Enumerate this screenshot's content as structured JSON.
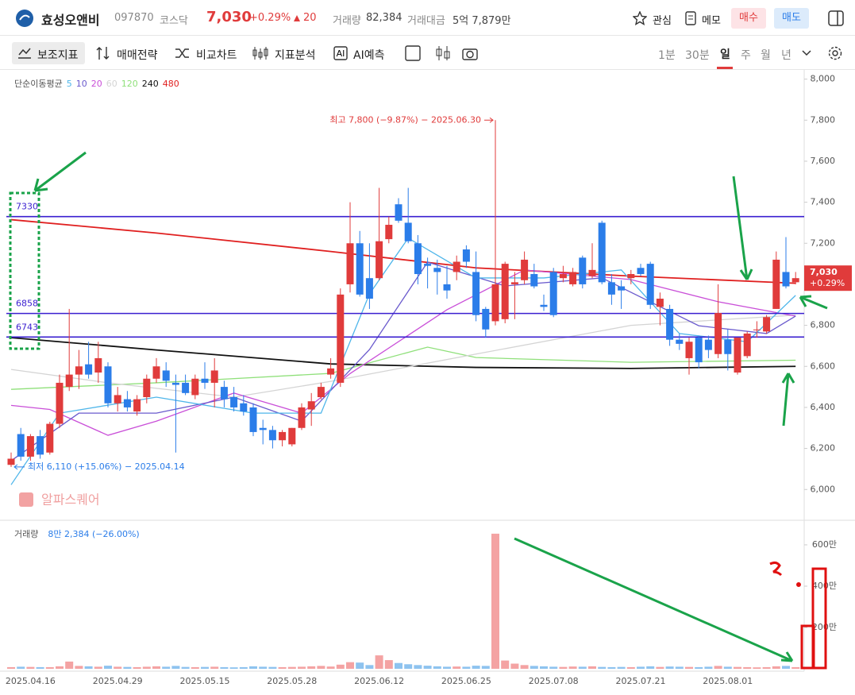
{
  "header": {
    "name": "효성오앤비",
    "code": "097870",
    "market": "코스닥",
    "price": "7,030",
    "change_pct": "+0.29%",
    "change": "20",
    "volume_label": "거래량",
    "volume": "82,384",
    "amount_label": "거래대금",
    "amount": "5억 7,879만",
    "buttons": [
      "관심",
      "메모",
      "매수",
      "매도"
    ]
  },
  "toolbar": {
    "items": [
      "보조지표",
      "매매전략",
      "비교차트",
      "지표분석",
      "AI예측"
    ],
    "periods": [
      "1분",
      "30분",
      "일",
      "주",
      "월",
      "년"
    ]
  },
  "chart_data": {
    "type": "candlestick",
    "up_color": "#e03b3b",
    "down_color": "#2b7de9",
    "categories": [
      null,
      null,
      "2025.04.16",
      null,
      null,
      null,
      null,
      null,
      null,
      null,
      null,
      "2025.04.29",
      null,
      null,
      null,
      null,
      null,
      null,
      null,
      null,
      "2025.05.15",
      null,
      null,
      null,
      null,
      null,
      null,
      null,
      null,
      "2025.05.28",
      null,
      null,
      null,
      null,
      null,
      null,
      null,
      null,
      "2025.06.12",
      null,
      null,
      null,
      null,
      null,
      null,
      null,
      null,
      "2025.06.25",
      null,
      null,
      null,
      null,
      null,
      null,
      null,
      null,
      "2025.07.08",
      null,
      null,
      null,
      null,
      null,
      null,
      null,
      null,
      "2025.07.21",
      null,
      null,
      null,
      null,
      null,
      null,
      null,
      null,
      "2025.08.01",
      null,
      null,
      null,
      null,
      null,
      null,
      null
    ],
    "candles": [
      [
        6120,
        6180,
        6110,
        6150
      ],
      [
        6270,
        6300,
        6140,
        6160
      ],
      [
        6160,
        6270,
        6140,
        6260
      ],
      [
        6260,
        6290,
        6150,
        6170
      ],
      [
        6180,
        6330,
        6170,
        6320
      ],
      [
        6320,
        6560,
        6300,
        6520
      ],
      [
        6500,
        6880,
        6480,
        6560
      ],
      [
        6560,
        6680,
        6490,
        6600
      ],
      [
        6610,
        6720,
        6540,
        6560
      ],
      [
        6570,
        6720,
        6520,
        6640
      ],
      [
        6600,
        6620,
        6400,
        6420
      ],
      [
        6420,
        6500,
        6380,
        6460
      ],
      [
        6440,
        6480,
        6380,
        6400
      ],
      [
        6380,
        6460,
        6360,
        6440
      ],
      [
        6450,
        6560,
        6420,
        6540
      ],
      [
        6540,
        6640,
        6520,
        6600
      ],
      [
        6580,
        6620,
        6500,
        6530
      ],
      [
        6520,
        6560,
        6180,
        6510
      ],
      [
        6520,
        6560,
        6460,
        6470
      ],
      [
        6460,
        6560,
        6440,
        6540
      ],
      [
        6540,
        6620,
        6490,
        6520
      ],
      [
        6520,
        6640,
        6400,
        6580
      ],
      [
        6500,
        6530,
        6400,
        6440
      ],
      [
        6450,
        6500,
        6380,
        6400
      ],
      [
        6420,
        6460,
        6360,
        6380
      ],
      [
        6400,
        6420,
        6260,
        6280
      ],
      [
        6300,
        6340,
        6220,
        6290
      ],
      [
        6290,
        6310,
        6200,
        6240
      ],
      [
        6240,
        6290,
        6210,
        6280
      ],
      [
        6220,
        6300,
        6210,
        6300
      ],
      [
        6300,
        6420,
        6290,
        6400
      ],
      [
        6390,
        6470,
        6310,
        6430
      ],
      [
        6450,
        6520,
        6440,
        6500
      ],
      [
        6560,
        6640,
        6540,
        6590
      ],
      [
        6520,
        6980,
        6500,
        6950
      ],
      [
        7000,
        7400,
        6960,
        7200
      ],
      [
        7200,
        7260,
        6940,
        6950
      ],
      [
        7030,
        7200,
        6880,
        6930
      ],
      [
        7030,
        7470,
        7020,
        7210
      ],
      [
        7220,
        7330,
        7200,
        7290
      ],
      [
        7390,
        7420,
        7300,
        7310
      ],
      [
        7300,
        7470,
        7200,
        7210
      ],
      [
        7200,
        7240,
        7000,
        7050
      ],
      [
        7100,
        7130,
        6980,
        7090
      ],
      [
        7080,
        7120,
        6950,
        7060
      ],
      [
        7000,
        7090,
        6930,
        6970
      ],
      [
        7060,
        7140,
        7020,
        7110
      ],
      [
        7170,
        7190,
        7080,
        7110
      ],
      [
        7060,
        7160,
        6820,
        6850
      ],
      [
        6880,
        6890,
        6740,
        6780
      ],
      [
        6820,
        7800,
        6800,
        7000
      ],
      [
        6830,
        7110,
        6810,
        7100
      ],
      [
        7000,
        7060,
        6830,
        7010
      ],
      [
        7020,
        7160,
        7000,
        7120
      ],
      [
        7050,
        7100,
        6980,
        6990
      ],
      [
        6900,
        6950,
        6870,
        6890
      ],
      [
        7060,
        7080,
        6840,
        6850
      ],
      [
        7030,
        7090,
        7010,
        7050
      ],
      [
        7000,
        7080,
        6990,
        7060
      ],
      [
        7130,
        7140,
        6980,
        7000
      ],
      [
        7040,
        7200,
        7030,
        7070
      ],
      [
        7300,
        7310,
        7000,
        7010
      ],
      [
        7010,
        7050,
        6900,
        6950
      ],
      [
        6990,
        7020,
        6880,
        6970
      ],
      [
        7030,
        7070,
        7000,
        7050
      ],
      [
        7080,
        7100,
        7040,
        7050
      ],
      [
        7100,
        7110,
        6880,
        6900
      ],
      [
        6890,
        6960,
        6800,
        6930
      ],
      [
        6880,
        6900,
        6700,
        6730
      ],
      [
        6730,
        6760,
        6680,
        6710
      ],
      [
        6640,
        6740,
        6560,
        6720
      ],
      [
        6740,
        6750,
        6590,
        6620
      ],
      [
        6730,
        6750,
        6640,
        6680
      ],
      [
        6660,
        7000,
        6640,
        6860
      ],
      [
        6730,
        6780,
        6580,
        6660
      ],
      [
        6570,
        6740,
        6560,
        6740
      ],
      [
        6650,
        6770,
        6640,
        6760
      ],
      [
        6780,
        6820,
        6740,
        6780
      ],
      [
        6770,
        6850,
        6760,
        6840
      ],
      [
        6880,
        7160,
        6880,
        7120
      ],
      [
        7060,
        7230,
        6980,
        6990
      ],
      [
        7010,
        7060,
        7000,
        7030
      ]
    ],
    "ylim": [
      5850,
      8045
    ],
    "yticks": [
      {
        "value": 6000,
        "label": "6,000"
      },
      {
        "value": 6200,
        "label": "6,200"
      },
      {
        "value": 6400,
        "label": "6,400"
      },
      {
        "value": 6600,
        "label": "6,600"
      },
      {
        "value": 6800,
        "label": "6,800"
      },
      {
        "value": 7000,
        "label": "7,000"
      },
      {
        "value": 7200,
        "label": "7,200"
      },
      {
        "value": 7400,
        "label": "7,400"
      },
      {
        "value": 7600,
        "label": "7,600"
      },
      {
        "value": 7800,
        "label": "7,800"
      },
      {
        "value": 8000,
        "label": "8,000"
      }
    ],
    "ma_label": "단순이동평균",
    "moving_averages": [
      {
        "name": "5",
        "color": "#4fb6ea",
        "x": [
          0,
          5,
          15,
          25,
          32,
          37,
          41,
          48,
          55,
          63,
          69,
          76,
          81
        ],
        "values": [
          6023,
          6372,
          6450,
          6372,
          6372,
          6953,
          7225,
          7031,
          7031,
          7070,
          6760,
          6720,
          6946
        ]
      },
      {
        "name": "10",
        "color": "#6a5acd",
        "x": [
          0,
          7,
          15,
          23,
          30,
          37,
          43,
          51,
          61,
          71,
          78,
          81
        ],
        "values": [
          6140,
          6372,
          6372,
          6450,
          6333,
          6682,
          7108,
          6992,
          7031,
          6798,
          6760,
          6845
        ]
      },
      {
        "name": "20",
        "color": "#c94fd8",
        "x": [
          0,
          4,
          10,
          15,
          23,
          30,
          35,
          45,
          53,
          64,
          73,
          81
        ],
        "values": [
          6410,
          6390,
          6264,
          6333,
          6470,
          6372,
          6565,
          6876,
          7070,
          7023,
          6915,
          6845
        ]
      },
      {
        "name": "60",
        "color": "#d4d4d4",
        "x": [
          0,
          10,
          23,
          33,
          48,
          64,
          81
        ],
        "values": [
          6585,
          6520,
          6450,
          6527,
          6660,
          6800,
          6850
        ]
      },
      {
        "name": "120",
        "color": "#8fe07a",
        "x": [
          0,
          15,
          33,
          43,
          48,
          64,
          81
        ],
        "values": [
          6488,
          6520,
          6566,
          6694,
          6643,
          6620,
          6630
        ]
      },
      {
        "name": "240",
        "color": "#111111",
        "x": [
          0,
          15,
          33,
          48,
          64,
          81
        ],
        "values": [
          6740,
          6680,
          6612,
          6595,
          6590,
          6600
        ]
      },
      {
        "name": "480",
        "color": "#e02020",
        "x": [
          0,
          15,
          33,
          48,
          64,
          81
        ],
        "values": [
          7315,
          7250,
          7160,
          7080,
          7040,
          7005
        ]
      }
    ],
    "levels": [
      7330,
      6858,
      6743
    ],
    "level_color": "#3a1fd0",
    "high_label": "최고 7,800 (−9.87%) − 2025.06.30",
    "low_label": "최저 6,110 (+15.06%) − 2025.04.14",
    "price_tag": "7,030",
    "change_tag": "+0.29%",
    "watermark": "알파스퀘어",
    "volume": {
      "label": "거래량",
      "legend": "8만 2,384 (−26.00%)",
      "up_color": "#f4a3a3",
      "down_color": "#8ec3ef",
      "values": [
        8,
        10,
        9,
        8,
        8,
        12,
        35,
        14,
        12,
        10,
        15,
        10,
        9,
        8,
        10,
        12,
        10,
        14,
        9,
        8,
        9,
        10,
        8,
        7,
        8,
        12,
        10,
        9,
        8,
        9,
        10,
        12,
        14,
        11,
        20,
        32,
        30,
        18,
        65,
        42,
        28,
        22,
        18,
        15,
        12,
        10,
        11,
        10,
        15,
        14,
        654,
        40,
        25,
        18,
        14,
        12,
        10,
        9,
        11,
        10,
        12,
        9,
        8,
        9,
        8,
        10,
        12,
        9,
        11,
        10,
        9,
        8,
        10,
        14,
        10,
        9,
        8,
        7,
        8,
        12,
        14,
        8
      ],
      "ylim": [
        0,
        719
      ],
      "yticks": [
        {
          "value": 200,
          "label": "200만"
        },
        {
          "value": 400,
          "label": "400만"
        },
        {
          "value": 600,
          "label": "600만"
        }
      ]
    }
  }
}
